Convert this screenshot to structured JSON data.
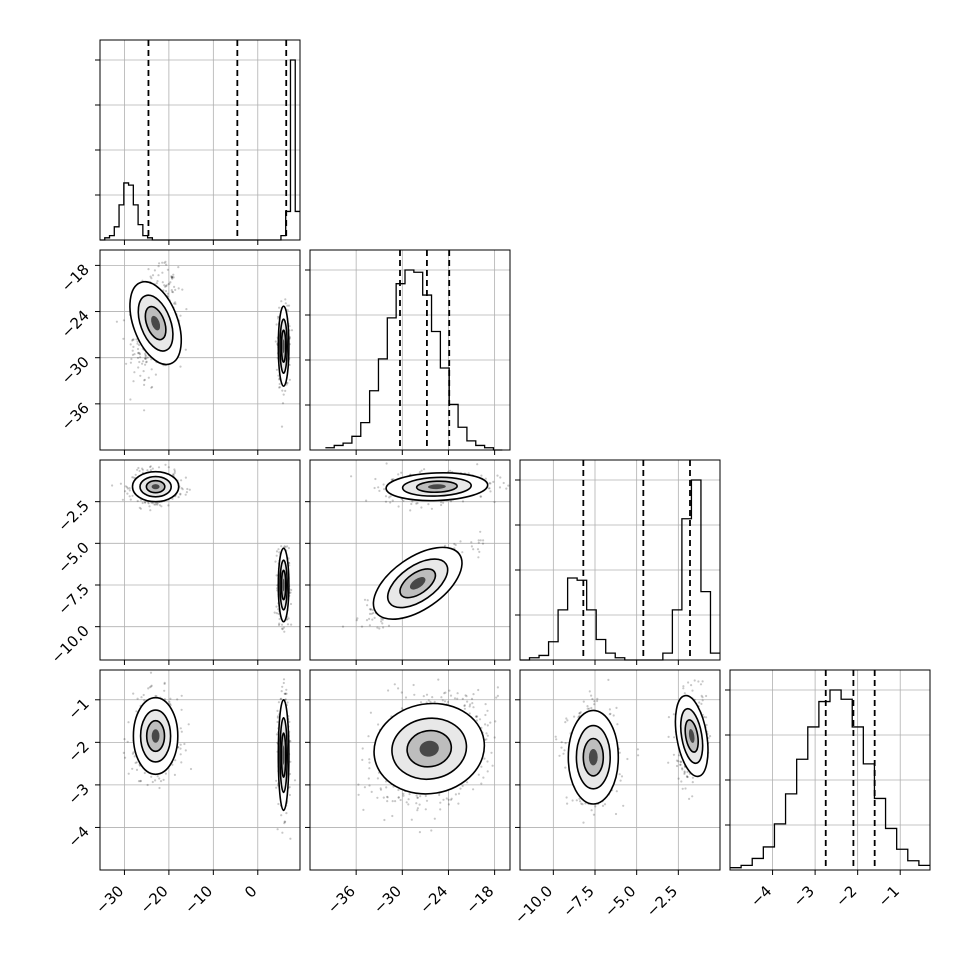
{
  "chart_data": {
    "type": "corner",
    "parameters": 4,
    "grid": true,
    "quantiles": [
      0.16,
      0.5,
      0.84
    ],
    "axis_ranges": [
      [
        -35.5,
        9.5
      ],
      [
        -42,
        -16
      ],
      [
        -12,
        0
      ],
      [
        -5,
        -0.3
      ]
    ],
    "x_tick_labels": [
      [
        "−30",
        "−20",
        "−10",
        "0"
      ],
      [
        "−36",
        "−30",
        "−24",
        "−18"
      ],
      [
        "−10.0",
        "−7.5",
        "−5.0",
        "−2.5"
      ],
      [
        "−4",
        "−3",
        "−2",
        "−1"
      ]
    ],
    "y_tick_labels": [
      [],
      [
        "−18",
        "−24",
        "−30",
        "−36"
      ],
      [
        "−2.5",
        "−5.0",
        "−7.5",
        "−10.0"
      ],
      [
        "−1",
        "−2",
        "−3",
        "−4"
      ]
    ],
    "marginals": [
      {
        "bins_lo": -35.5,
        "bins_hi": 9.5,
        "counts": [
          0,
          1,
          2,
          6,
          16,
          26,
          25,
          16,
          7,
          2,
          1,
          0,
          0,
          0,
          0,
          0,
          0,
          0,
          0,
          0,
          0,
          0,
          0,
          0,
          0,
          0,
          0,
          0,
          0,
          0,
          0,
          0,
          0,
          0,
          0,
          0,
          0,
          0,
          2,
          13,
          82,
          13
        ],
        "quantile_values": [
          -24.6,
          -4.6,
          6.4
        ]
      },
      {
        "bins_lo": -40,
        "bins_hi": -17,
        "counts": [
          1,
          2,
          3,
          6,
          12,
          26,
          40,
          58,
          73,
          79,
          78,
          68,
          52,
          36,
          20,
          10,
          4,
          2,
          1,
          0
        ],
        "quantile_values": [
          -30.3,
          -26.8,
          -23.9
        ]
      },
      {
        "bins_lo": -12,
        "bins_hi": 0,
        "counts": [
          0,
          1,
          2,
          8,
          22,
          36,
          35,
          22,
          9,
          3,
          1,
          0,
          0,
          0,
          0,
          3,
          22,
          62,
          79,
          30,
          3
        ],
        "quantile_values": [
          -8.2,
          -4.6,
          -1.8
        ]
      },
      {
        "bins_lo": -5,
        "bins_hi": -0.3,
        "counts": [
          1,
          2,
          5,
          10,
          20,
          33,
          48,
          62,
          73,
          78,
          74,
          62,
          46,
          31,
          18,
          9,
          4,
          2
        ],
        "quantile_values": [
          -2.75,
          -2.1,
          -1.6
        ]
      }
    ],
    "joint_modes": [
      {
        "row": 1,
        "col": 0,
        "clusters": [
          {
            "cx": -23.0,
            "cy": -25.5,
            "sx": 2.5,
            "sy": 3.2,
            "rho": 0.3,
            "weight": 0.55
          },
          {
            "cx": 5.8,
            "cy": -28.5,
            "sx": 0.6,
            "sy": 2.6,
            "rho": 0.0,
            "weight": 0.45
          }
        ]
      },
      {
        "row": 2,
        "col": 0,
        "clusters": [
          {
            "cx": -23.0,
            "cy": -1.6,
            "sx": 2.6,
            "sy": 0.45,
            "rho": 0.0,
            "weight": 0.55
          },
          {
            "cx": 5.8,
            "cy": -7.5,
            "sx": 0.6,
            "sy": 1.1,
            "rho": 0.0,
            "weight": 0.45
          }
        ]
      },
      {
        "row": 2,
        "col": 1,
        "clusters": [
          {
            "cx": -25.5,
            "cy": -1.6,
            "sx": 3.3,
            "sy": 0.45,
            "rho": 0.2,
            "weight": 0.55
          },
          {
            "cx": -28.0,
            "cy": -7.4,
            "sx": 3.3,
            "sy": 1.2,
            "rho": 0.88,
            "weight": 0.45
          }
        ]
      },
      {
        "row": 3,
        "col": 0,
        "clusters": [
          {
            "cx": -23.0,
            "cy": -1.85,
            "sx": 2.5,
            "sy": 0.45,
            "rho": 0.0,
            "weight": 0.55
          },
          {
            "cx": 5.8,
            "cy": -2.3,
            "sx": 0.6,
            "sy": 0.65,
            "rho": 0.0,
            "weight": 0.45
          }
        ]
      },
      {
        "row": 3,
        "col": 1,
        "clusters": [
          {
            "cx": -26.5,
            "cy": -2.15,
            "sx": 3.6,
            "sy": 0.6,
            "rho": 0.3,
            "weight": 1.0
          }
        ]
      },
      {
        "row": 3,
        "col": 2,
        "clusters": [
          {
            "cx": -7.6,
            "cy": -2.35,
            "sx": 0.75,
            "sy": 0.55,
            "rho": 0.0,
            "weight": 0.55
          },
          {
            "cx": -1.7,
            "cy": -1.85,
            "sx": 0.45,
            "sy": 0.5,
            "rho": 0.1,
            "weight": 0.45
          }
        ]
      }
    ]
  }
}
